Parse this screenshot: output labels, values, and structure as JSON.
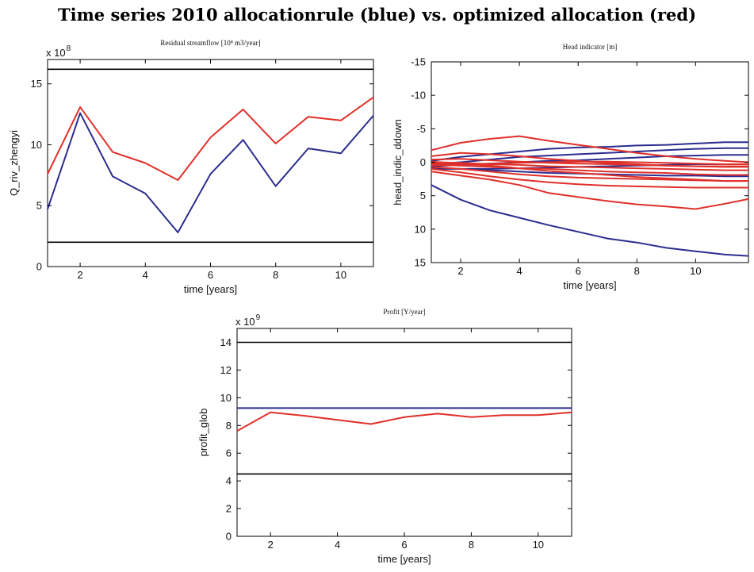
{
  "page_title": "Time series 2010 allocationrule (blue) vs. optimized allocation (red)",
  "colors": {
    "blue": "#2b2d8f",
    "red": "#e0302a",
    "black": "#000000"
  },
  "chart_data": [
    {
      "id": "streamflow",
      "type": "line",
      "title": "Residual streamflow [10⁸ m3/year]",
      "xlabel": "time [years]",
      "ylabel": "Q_riv_zhengyi",
      "multiplier": "x 10",
      "multiplier_exp": "8",
      "xlim": [
        1,
        11
      ],
      "ylim": [
        0,
        17
      ],
      "y_reversed": false,
      "xticks": [
        2,
        4,
        6,
        8,
        10
      ],
      "yticks": [
        0,
        5,
        10,
        15
      ],
      "series": [
        {
          "color": "red",
          "x": [
            1,
            2,
            3,
            4,
            5,
            6,
            7,
            8,
            9,
            10,
            11
          ],
          "values": [
            7.6,
            13.1,
            9.4,
            8.5,
            7.1,
            10.6,
            12.9,
            10.1,
            12.3,
            12.0,
            13.9
          ]
        },
        {
          "color": "blue",
          "x": [
            1,
            2,
            3,
            4,
            5,
            6,
            7,
            8,
            9,
            10,
            11
          ],
          "values": [
            4.7,
            12.6,
            7.4,
            6.0,
            2.8,
            7.6,
            10.4,
            6.6,
            9.7,
            9.3,
            12.4
          ]
        },
        {
          "color": "black",
          "x": [
            1,
            11
          ],
          "values": [
            16.2,
            16.2
          ]
        },
        {
          "color": "black",
          "x": [
            1,
            11
          ],
          "values": [
            2.0,
            2.0
          ]
        }
      ]
    },
    {
      "id": "head",
      "type": "line",
      "title": "Head indicator [m]",
      "xlabel": "time [years]",
      "ylabel": "head_indic_ddown",
      "multiplier": "",
      "multiplier_exp": "",
      "xlim": [
        1,
        11.8
      ],
      "ylim": [
        -15,
        15
      ],
      "y_reversed": true,
      "xticks": [
        2,
        4,
        6,
        8,
        10
      ],
      "yticks": [
        -15,
        -10,
        -5,
        0,
        5,
        10,
        15
      ],
      "series": [
        {
          "color": "blue",
          "x": [
            1,
            2,
            3,
            4,
            5,
            6,
            7,
            8,
            9,
            10,
            11,
            11.8
          ],
          "values": [
            -0.2,
            -0.8,
            -1.2,
            -1.6,
            -2.0,
            -2.2,
            -2.3,
            -2.5,
            -2.6,
            -2.8,
            -3.0,
            -3.0
          ]
        },
        {
          "color": "blue",
          "x": [
            1,
            2,
            3,
            4,
            5,
            6,
            7,
            8,
            9,
            10,
            11,
            11.8
          ],
          "values": [
            0.3,
            0.0,
            -0.4,
            -0.8,
            -1.0,
            -1.2,
            -1.4,
            -1.6,
            -1.8,
            -2.0,
            -2.1,
            -2.1
          ]
        },
        {
          "color": "blue",
          "x": [
            1,
            2,
            3,
            4,
            5,
            6,
            7,
            8,
            9,
            10,
            11,
            11.8
          ],
          "values": [
            0.6,
            0.4,
            0.2,
            0.0,
            -0.2,
            -0.3,
            -0.5,
            -0.7,
            -0.9,
            -1.0,
            -1.1,
            -1.1
          ]
        },
        {
          "color": "blue",
          "x": [
            1,
            2,
            3,
            4,
            5,
            6,
            7,
            8,
            9,
            10,
            11,
            11.8
          ],
          "values": [
            1.0,
            1.0,
            1.0,
            0.9,
            0.8,
            0.7,
            0.6,
            0.5,
            0.4,
            0.3,
            0.3,
            0.3
          ]
        },
        {
          "color": "blue",
          "x": [
            1,
            2,
            3,
            4,
            5,
            6,
            7,
            8,
            9,
            10,
            11,
            11.8
          ],
          "values": [
            0.8,
            1.0,
            1.2,
            1.4,
            1.6,
            1.7,
            1.8,
            1.9,
            2.0,
            2.0,
            2.1,
            2.1
          ]
        },
        {
          "color": "blue",
          "x": [
            1,
            2,
            3,
            4,
            5,
            6,
            7,
            8,
            9,
            10,
            11,
            11.8
          ],
          "values": [
            3.4,
            5.6,
            7.2,
            8.3,
            9.4,
            10.4,
            11.4,
            12.0,
            12.8,
            13.3,
            13.8,
            14.0
          ]
        },
        {
          "color": "red",
          "x": [
            1,
            2,
            3,
            4,
            5,
            6,
            7,
            8,
            9,
            10,
            11,
            11.8
          ],
          "values": [
            -1.8,
            -2.9,
            -3.5,
            -3.9,
            -3.2,
            -2.6,
            -2.0,
            -1.4,
            -0.9,
            -0.5,
            -0.2,
            0.0
          ]
        },
        {
          "color": "red",
          "x": [
            1,
            2,
            3,
            4,
            5,
            6,
            7,
            8,
            9,
            10,
            11,
            11.8
          ],
          "values": [
            -0.9,
            -1.4,
            -1.2,
            -0.9,
            -0.5,
            -0.2,
            0.1,
            0.3,
            0.5,
            0.6,
            0.7,
            0.7
          ]
        },
        {
          "color": "red",
          "x": [
            1,
            2,
            3,
            4,
            5,
            6,
            7,
            8,
            9,
            10,
            11,
            11.8
          ],
          "values": [
            -0.4,
            -0.5,
            -0.3,
            -0.1,
            0.1,
            0.2,
            0.3,
            0.4,
            0.5,
            0.6,
            0.6,
            0.6
          ]
        },
        {
          "color": "red",
          "x": [
            1,
            2,
            3,
            4,
            5,
            6,
            7,
            8,
            9,
            10,
            11,
            11.8
          ],
          "values": [
            0.0,
            0.1,
            0.3,
            0.4,
            0.6,
            0.7,
            0.8,
            0.9,
            1.0,
            1.1,
            1.2,
            1.2
          ]
        },
        {
          "color": "red",
          "x": [
            1,
            2,
            3,
            4,
            5,
            6,
            7,
            8,
            9,
            10,
            11,
            11.8
          ],
          "values": [
            0.4,
            0.5,
            0.7,
            0.9,
            1.0,
            1.2,
            1.4,
            1.5,
            1.6,
            1.8,
            1.9,
            1.9
          ]
        },
        {
          "color": "red",
          "x": [
            1,
            2,
            3,
            4,
            5,
            6,
            7,
            8,
            9,
            10,
            11,
            11.8
          ],
          "values": [
            0.7,
            1.0,
            1.4,
            1.8,
            2.1,
            2.3,
            2.4,
            2.5,
            2.6,
            2.7,
            2.8,
            2.8
          ]
        },
        {
          "color": "red",
          "x": [
            1,
            2,
            3,
            4,
            5,
            6,
            7,
            8,
            9,
            10,
            11,
            11.8
          ],
          "values": [
            1.0,
            1.5,
            2.1,
            2.6,
            3.0,
            3.3,
            3.5,
            3.6,
            3.7,
            3.8,
            3.8,
            3.8
          ]
        },
        {
          "color": "red",
          "x": [
            1,
            2,
            3,
            4,
            5,
            6,
            7,
            8,
            9,
            10,
            11,
            11.8
          ],
          "values": [
            1.4,
            2.0,
            2.6,
            3.4,
            4.6,
            5.2,
            5.8,
            6.3,
            6.6,
            7.0,
            6.2,
            5.5
          ]
        },
        {
          "color": "red",
          "x": [
            1,
            2,
            3,
            4,
            5,
            6,
            7,
            8,
            9,
            10,
            11,
            11.8
          ],
          "values": [
            -0.1,
            0.2,
            0.5,
            0.9,
            1.3,
            1.6,
            1.9,
            2.2,
            2.4,
            2.6,
            2.8,
            2.8
          ]
        },
        {
          "color": "red",
          "x": [
            1,
            2,
            3,
            4,
            5,
            6,
            7,
            8,
            9,
            10,
            11,
            11.8
          ],
          "values": [
            0.2,
            0.3,
            0.2,
            0.1,
            0.0,
            -0.1,
            -0.1,
            0.0,
            0.1,
            0.2,
            0.3,
            0.3
          ]
        }
      ]
    },
    {
      "id": "profit",
      "type": "line",
      "title": "Profit [Y/year]",
      "xlabel": "time [years]",
      "ylabel": "profit_glob",
      "multiplier": "x 10",
      "multiplier_exp": "9",
      "xlim": [
        1,
        11
      ],
      "ylim": [
        0,
        15
      ],
      "y_reversed": false,
      "xticks": [
        2,
        4,
        6,
        8,
        10
      ],
      "yticks": [
        0,
        2,
        4,
        6,
        8,
        10,
        12,
        14
      ],
      "series": [
        {
          "color": "black",
          "x": [
            1,
            11
          ],
          "values": [
            14.0,
            14.0
          ]
        },
        {
          "color": "black",
          "x": [
            1,
            11
          ],
          "values": [
            4.5,
            4.5
          ]
        },
        {
          "color": "blue",
          "x": [
            1,
            11
          ],
          "values": [
            9.25,
            9.25
          ]
        },
        {
          "color": "red",
          "x": [
            1,
            2,
            3,
            4,
            5,
            6,
            7,
            8,
            9,
            10,
            11
          ],
          "values": [
            7.6,
            8.95,
            8.7,
            8.4,
            8.1,
            8.6,
            8.85,
            8.6,
            8.75,
            8.75,
            8.95
          ]
        }
      ]
    }
  ]
}
